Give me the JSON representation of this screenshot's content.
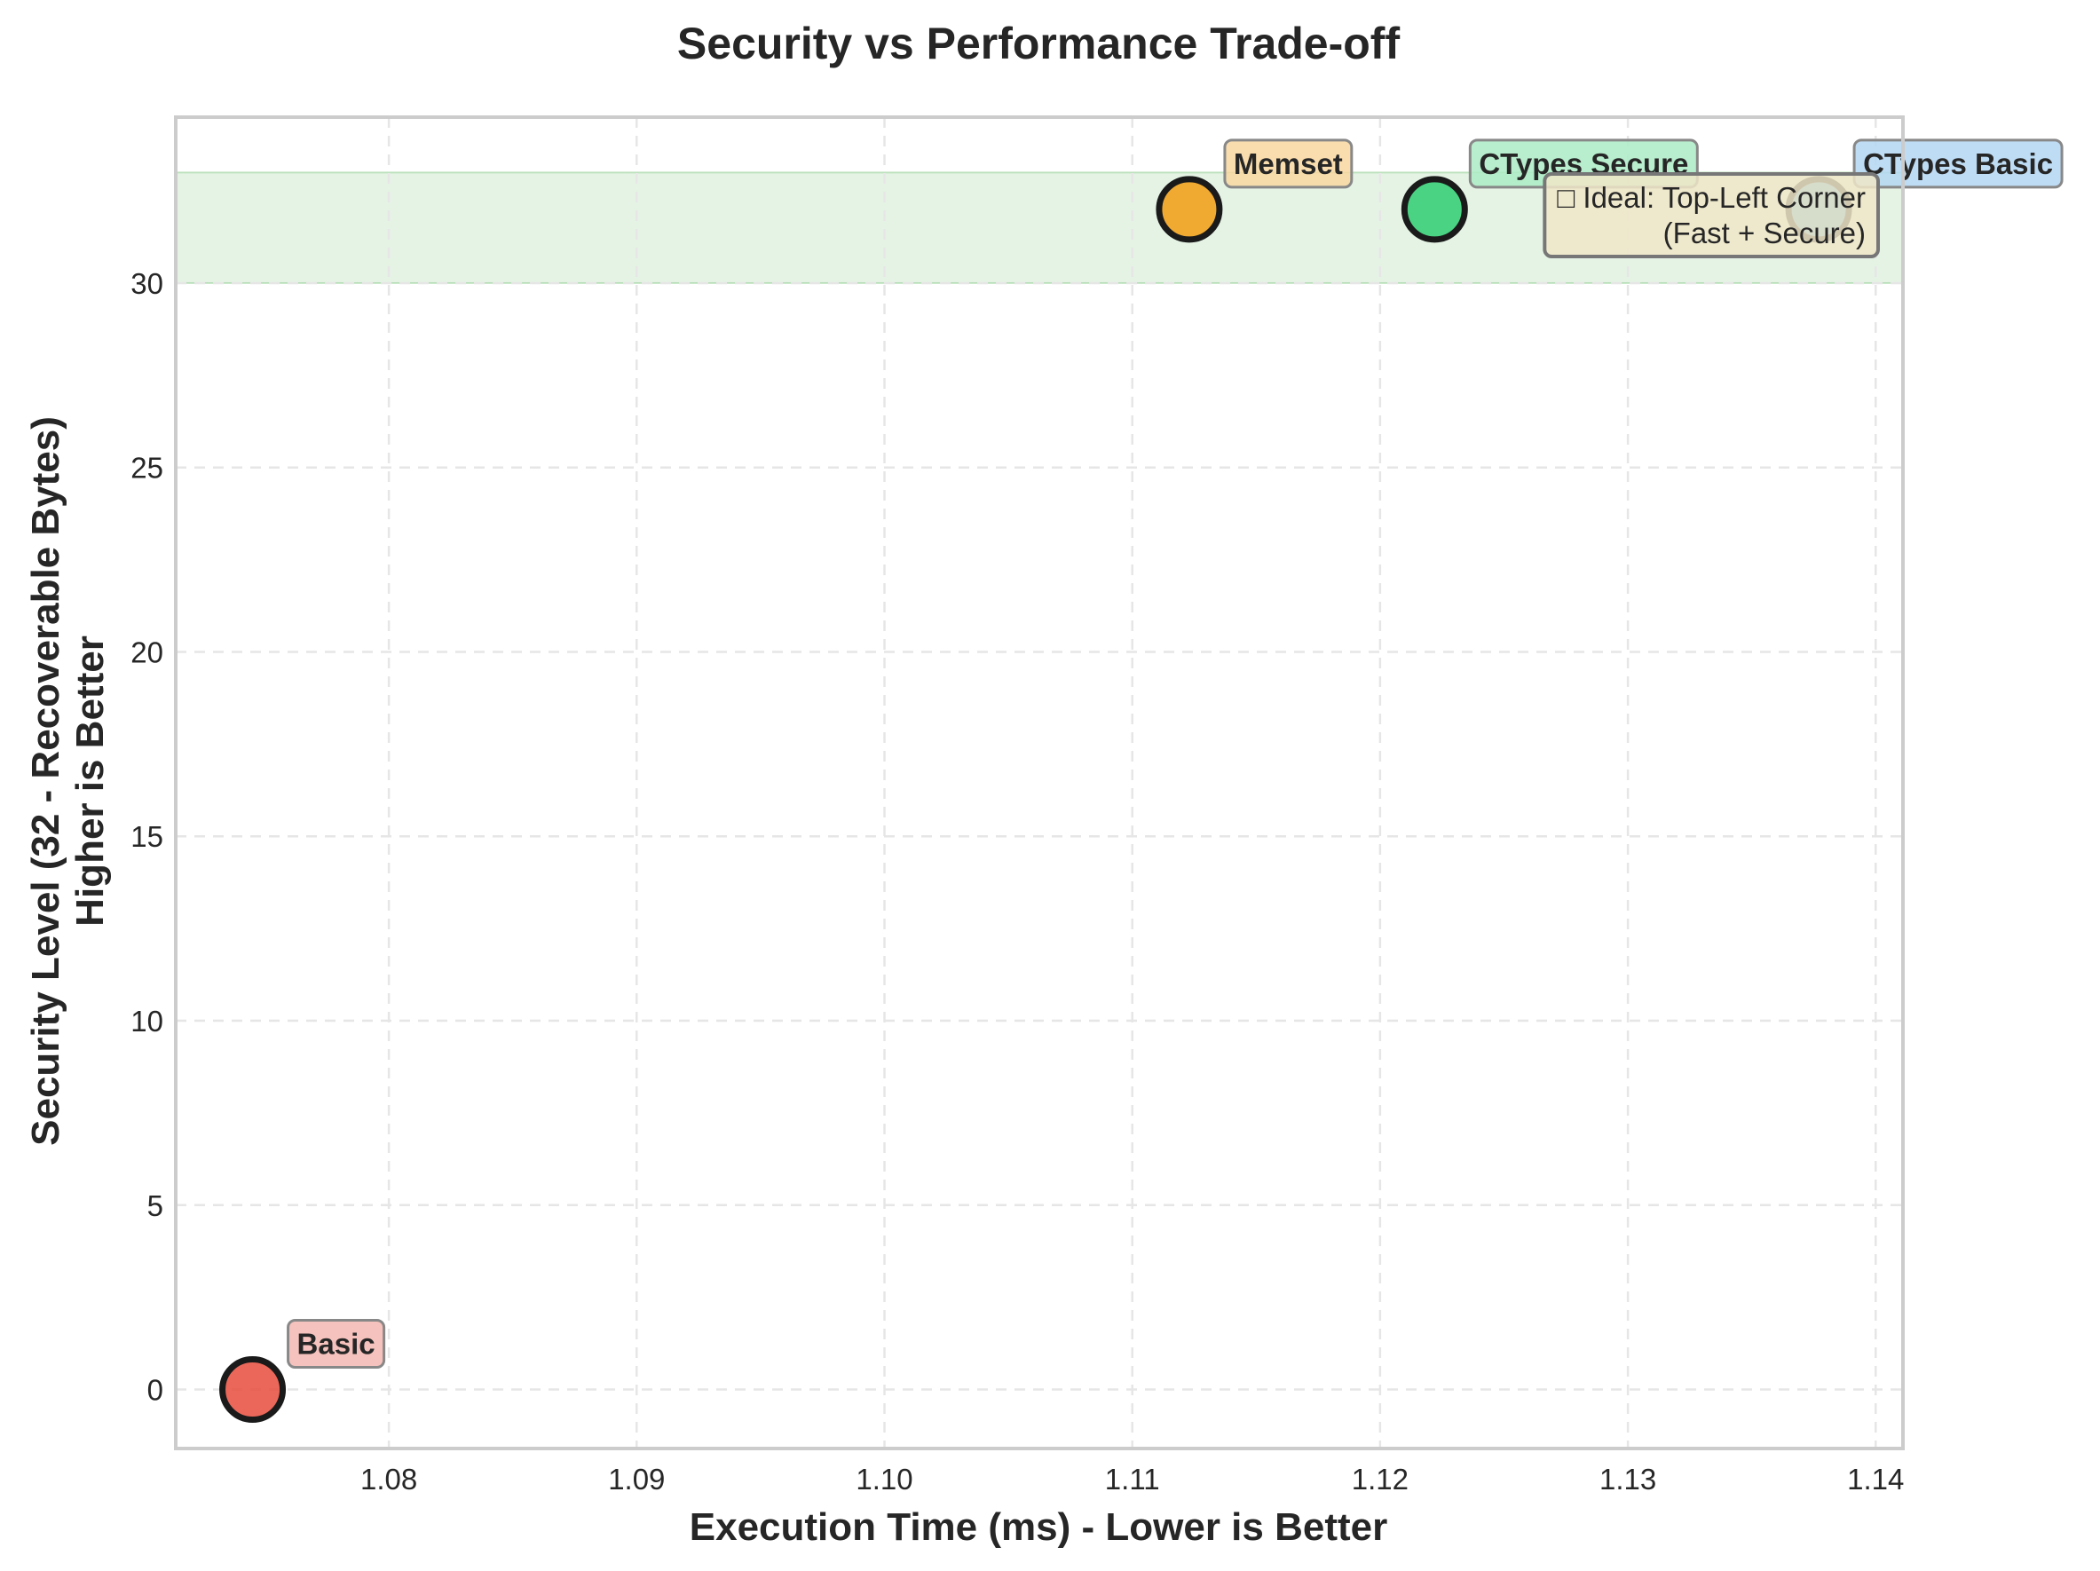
{
  "chart_data": {
    "type": "scatter",
    "title": "Security vs Performance Trade-off",
    "xlabel": "Execution Time (ms) - Lower is Better",
    "ylabel_lines": [
      "Security Level (32 - Recoverable Bytes)",
      "Higher is Better"
    ],
    "xlim": [
      1.0714,
      1.1411
    ],
    "ylim": [
      -1.6,
      34.5
    ],
    "x_ticks": [
      1.08,
      1.09,
      1.1,
      1.11,
      1.12,
      1.13,
      1.14
    ],
    "x_tick_labels": [
      "1.08",
      "1.09",
      "1.10",
      "1.11",
      "1.12",
      "1.13",
      "1.14"
    ],
    "y_ticks": [
      0,
      5,
      10,
      15,
      20,
      25,
      30
    ],
    "y_tick_labels": [
      "0",
      "5",
      "10",
      "15",
      "20",
      "25",
      "30"
    ],
    "grid": true,
    "shaded_band": {
      "y_from": 30,
      "y_to": 33,
      "color": "#2ca02c"
    },
    "points": [
      {
        "name": "Basic",
        "x": 1.0745,
        "y": 0,
        "color": "#e74c3c",
        "label_bg": "#f5b7b1"
      },
      {
        "name": "Memset",
        "x": 1.1123,
        "y": 32,
        "color": "#f39c12",
        "label_bg": "#f8d7a0"
      },
      {
        "name": "CTypes Secure",
        "x": 1.1222,
        "y": 32,
        "color": "#2ecc71",
        "label_bg": "#abebc6"
      },
      {
        "name": "CTypes Basic",
        "x": 1.1377,
        "y": 32,
        "color": "#3498db",
        "label_bg": "#b3d6f2"
      }
    ],
    "annotation": {
      "lines": [
        "□ Ideal: Top-Left Corner",
        "(Fast + Secure)"
      ],
      "bg": "#f0e6c8",
      "position": "top-right"
    }
  }
}
